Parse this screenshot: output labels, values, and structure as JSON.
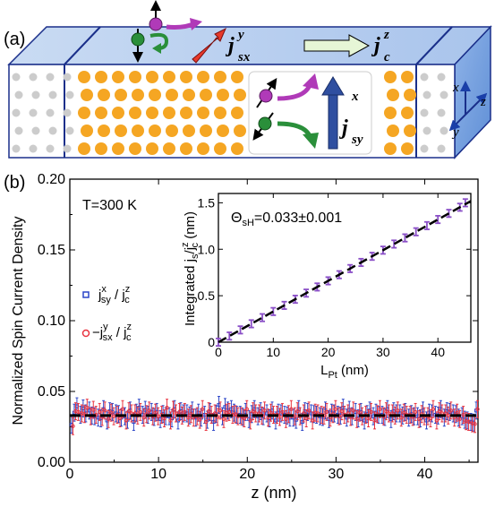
{
  "panel_a": {
    "label": "(a)",
    "flow_labels": {
      "jsx_main": "j",
      "jsx_sup": "y",
      "jsx_sub": "sx",
      "jc_main": "j",
      "jc_sup": "z",
      "jc_sub": "c",
      "jsy_main": "j",
      "jsy_sup": "x",
      "jsy_sub": "sy"
    },
    "axes": {
      "x": "x",
      "y": "y",
      "z": "z"
    },
    "colors": {
      "slab_top": "#b8cfee",
      "slab_side": "#8fb3e8",
      "atom_pt": "#f5a623",
      "atom_other": "#cccccc",
      "spin_up": "#b03ab8",
      "spin_down": "#2a8f3a",
      "arrow_jsx": "#e8392a",
      "arrow_jsy": "#2f4fa0",
      "arrow_jc": "#e6f6d6"
    }
  },
  "panel_b": {
    "label": "(b)",
    "annotation": "T=300 K",
    "legend": [
      {
        "main": "j",
        "sup": "x",
        "sub": "sy",
        "sep": " / ",
        "main2": "j",
        "sup2": "z",
        "sub2": "c",
        "color": "#2c46c8",
        "marker": "square"
      },
      {
        "prefix": "−",
        "main": "j",
        "sup": "y",
        "sub": "sx",
        "sep": " / ",
        "main2": "j",
        "sup2": "z",
        "sub2": "c",
        "color": "#e8333f",
        "marker": "circle"
      }
    ],
    "inset": {
      "annotation_sym": "Θ",
      "annotation_sub": "sH",
      "annotation_val": "=0.033±0.001",
      "ylabel_a": "Integrated j",
      "ylabel_sub": "s",
      "ylabel_b": "/j",
      "ylabel_sup": "z",
      "ylabel_sub2": "c",
      "ylabel_unit": " (nm)",
      "xlabel_a": "L",
      "xlabel_sub": "Pt",
      "xlabel_unit": " (nm)"
    }
  },
  "chart_data": [
    {
      "type": "scatter",
      "xlabel": "z (nm)",
      "ylabel": "Normalized Spin Current Density",
      "xlim": [
        0,
        46
      ],
      "ylim": [
        0,
        0.2
      ],
      "xticks": [
        0,
        10,
        20,
        30,
        40
      ],
      "yticks": [
        0.0,
        0.05,
        0.1,
        0.15,
        0.2
      ],
      "xtick_labels": [
        "0",
        "10",
        "20",
        "30",
        "40"
      ],
      "ytick_labels": [
        "0.00",
        "0.05",
        "0.10",
        "0.15",
        "0.20"
      ],
      "mean_line": 0.033,
      "series": [
        {
          "name": "j_sy^x / j_c^z",
          "color": "#2c46c8",
          "x": [
            0.5,
            1.5,
            2.5,
            3.5,
            4.5,
            5.5,
            6.5,
            7.5,
            8.5,
            9.5,
            10.5,
            11.5,
            12.5,
            13.5,
            14.5,
            15.5,
            16.5,
            17.5,
            18.5,
            19.5,
            20.5,
            21.5,
            22.5,
            23.5,
            24.5,
            25.5,
            26.5,
            27.5,
            28.5,
            29.5,
            30.5,
            31.5,
            32.5,
            33.5,
            34.5,
            35.5,
            36.5,
            37.5,
            38.5,
            39.5,
            40.5,
            41.5,
            42.5,
            43.5,
            44.5,
            45.5
          ],
          "y": [
            0.028,
            0.035,
            0.038,
            0.033,
            0.031,
            0.036,
            0.034,
            0.03,
            0.035,
            0.037,
            0.032,
            0.034,
            0.031,
            0.036,
            0.033,
            0.035,
            0.03,
            0.034,
            0.039,
            0.035,
            0.032,
            0.034,
            0.036,
            0.031,
            0.035,
            0.033,
            0.03,
            0.036,
            0.034,
            0.032,
            0.035,
            0.033,
            0.037,
            0.031,
            0.034,
            0.035,
            0.032,
            0.036,
            0.033,
            0.034,
            0.031,
            0.035,
            0.033,
            0.036,
            0.034,
            0.03
          ],
          "yerr": 0.006
        },
        {
          "name": "-j_sx^y / j_c^z",
          "color": "#e8333f",
          "x": [
            0.5,
            1.5,
            2.5,
            3.5,
            4.5,
            5.5,
            6.5,
            7.5,
            8.5,
            9.5,
            10.5,
            11.5,
            12.5,
            13.5,
            14.5,
            15.5,
            16.5,
            17.5,
            18.5,
            19.5,
            20.5,
            21.5,
            22.5,
            23.5,
            24.5,
            25.5,
            26.5,
            27.5,
            28.5,
            29.5,
            30.5,
            31.5,
            32.5,
            33.5,
            34.5,
            35.5,
            36.5,
            37.5,
            38.5,
            39.5,
            40.5,
            41.5,
            42.5,
            43.5,
            44.5,
            45.5
          ],
          "y": [
            0.027,
            0.036,
            0.034,
            0.037,
            0.032,
            0.035,
            0.031,
            0.036,
            0.033,
            0.034,
            0.035,
            0.031,
            0.037,
            0.033,
            0.034,
            0.03,
            0.036,
            0.032,
            0.035,
            0.034,
            0.031,
            0.036,
            0.033,
            0.035,
            0.032,
            0.034,
            0.036,
            0.031,
            0.035,
            0.033,
            0.034,
            0.036,
            0.032,
            0.035,
            0.031,
            0.034,
            0.036,
            0.033,
            0.035,
            0.032,
            0.034,
            0.031,
            0.036,
            0.033,
            0.035,
            0.029
          ],
          "yerr": 0.006
        }
      ]
    },
    {
      "type": "line",
      "inset": true,
      "xlim": [
        0,
        46
      ],
      "ylim": [
        0,
        1.6
      ],
      "xticks": [
        0,
        10,
        20,
        30,
        40
      ],
      "yticks": [
        0,
        0.5,
        1.0,
        1.5
      ],
      "xtick_labels": [
        "0",
        "10",
        "20",
        "30",
        "40"
      ],
      "ytick_labels": [
        "0",
        "0.5",
        "1.0",
        "1.5"
      ],
      "fit_slope": 0.033,
      "series": [
        {
          "name": "Integrated j_s/j_c^z",
          "color": "#8a4fc7",
          "x": [
            0,
            2,
            4,
            6,
            8,
            10,
            12,
            14,
            16,
            18,
            20,
            22,
            24,
            26,
            28,
            30,
            32,
            34,
            36,
            38,
            40,
            42,
            44,
            45
          ],
          "y": [
            0,
            0.066,
            0.132,
            0.198,
            0.264,
            0.33,
            0.396,
            0.462,
            0.528,
            0.594,
            0.66,
            0.726,
            0.792,
            0.858,
            0.924,
            0.99,
            1.056,
            1.122,
            1.188,
            1.254,
            1.32,
            1.386,
            1.452,
            1.5
          ],
          "yerr": 0.04
        }
      ]
    }
  ]
}
